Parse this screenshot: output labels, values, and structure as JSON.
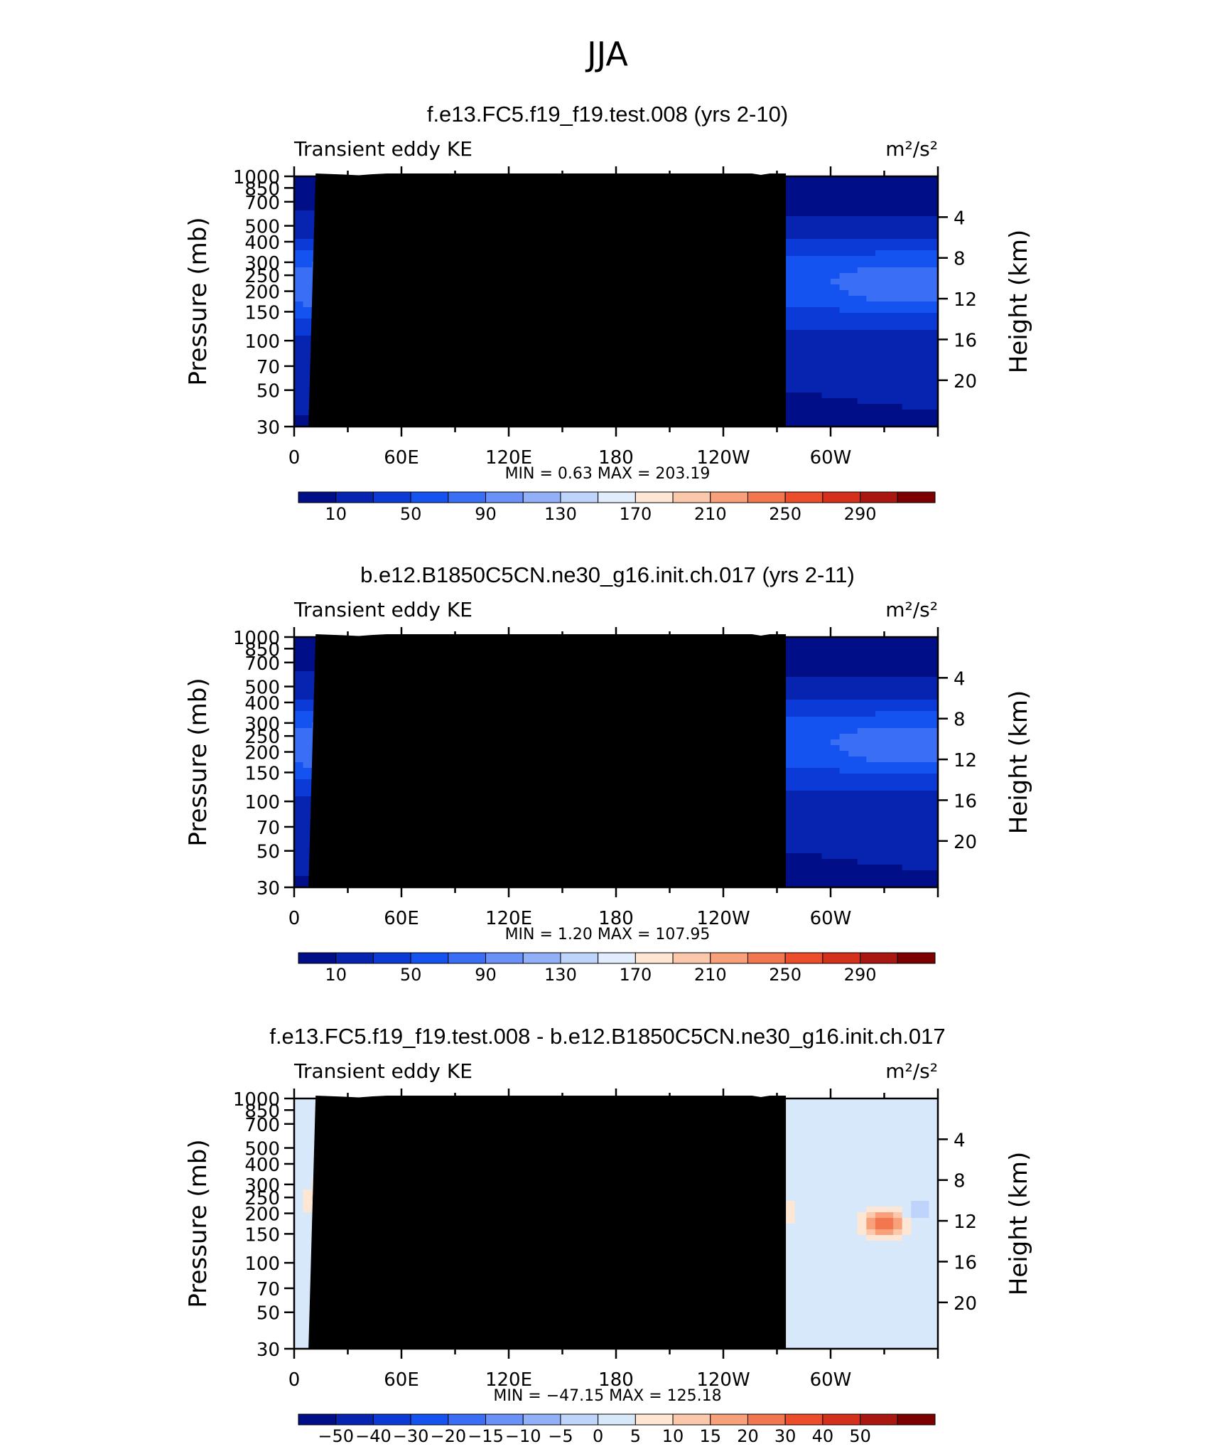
{
  "figure": {
    "season_title": "JJA"
  },
  "colorbars": {
    "model": {
      "colors": [
        "#000f87",
        "#0724b0",
        "#0b3ad6",
        "#1553f0",
        "#3a6ff5",
        "#6991f7",
        "#92b0f8",
        "#bed4fb",
        "#e1edfc",
        "#fde7d4",
        "#fbc8ab",
        "#f8a07a",
        "#f2774f",
        "#ec4e2b",
        "#d5301b",
        "#a91710",
        "#7c0000"
      ],
      "labels": [
        "10",
        "50",
        "90",
        "130",
        "170",
        "210",
        "250",
        "290"
      ]
    },
    "diff": {
      "colors": [
        "#000f87",
        "#0724b0",
        "#0b3ad6",
        "#1553f0",
        "#3a6ff5",
        "#6991f7",
        "#92b0f8",
        "#bed4fb",
        "#d8e8fb",
        "#fde7d4",
        "#fbc8ab",
        "#f8a07a",
        "#f2774f",
        "#ec4e2b",
        "#d5301b",
        "#a91710",
        "#7c0000"
      ],
      "labels": [
        "−50",
        "−40",
        "−30",
        "−20",
        "−15",
        "−10",
        "−5",
        "0",
        "5",
        "10",
        "15",
        "20",
        "30",
        "40",
        "50"
      ]
    }
  },
  "axes": {
    "pressure_ticks": [
      "30",
      "50",
      "70",
      "100",
      "150",
      "200",
      "250",
      "300",
      "400",
      "500",
      "700",
      "850",
      "1000"
    ],
    "height_ticks": [
      "20",
      "16",
      "12",
      "8",
      "4"
    ],
    "lon_ticks": [
      "0",
      "60E",
      "120E",
      "180",
      "120W",
      "60W"
    ],
    "ylabel_left": "Pressure (mb)",
    "ylabel_right": "Height (km)"
  },
  "chart_data": [
    {
      "type": "heatmap",
      "title": "f.e13.FC5.f19_f19.test.008 (yrs 2-10)",
      "left_label": "Transient eddy KE",
      "units": "m²/s²",
      "min_label": "MIN =",
      "min_value": "0.63",
      "max_label": "MAX =",
      "max_value": "203.19",
      "stats": "MIN =      0.63   MAX =  203.19",
      "colorbar": "model",
      "xlim": [
        0,
        360
      ],
      "ylim_mb": [
        1000,
        30
      ],
      "contour_levels": [
        10,
        30,
        50,
        70,
        90,
        110,
        130,
        150,
        170,
        190,
        210,
        230,
        250,
        270,
        290
      ]
    },
    {
      "type": "heatmap",
      "title": "b.e12.B1850C5CN.ne30_g16.init.ch.017 (yrs 2-11)",
      "left_label": "Transient eddy KE",
      "units": "m²/s²",
      "min_label": "MIN =",
      "min_value": "1.20",
      "max_label": "MAX =",
      "max_value": "107.95",
      "stats": "MIN =      1.20   MAX =  107.95",
      "colorbar": "model",
      "xlim": [
        0,
        360
      ],
      "ylim_mb": [
        1000,
        30
      ],
      "contour_levels": [
        10,
        30,
        50,
        70,
        90,
        110,
        130,
        150,
        170,
        190,
        210,
        230,
        250,
        270,
        290
      ]
    },
    {
      "type": "heatmap",
      "title": "f.e13.FC5.f19_f19.test.008 - b.e12.B1850C5CN.ne30_g16.init.ch.017",
      "left_label": "Transient eddy KE",
      "units": "m²/s²",
      "min_label": "MIN =",
      "min_value": "−47.15",
      "max_label": "MAX =",
      "max_value": "125.18",
      "stats": "MIN =  −47.15   MAX =  125.18",
      "colorbar": "diff",
      "xlim": [
        0,
        360
      ],
      "ylim_mb": [
        1000,
        30
      ],
      "contour_levels": [
        -50,
        -40,
        -30,
        -20,
        -15,
        -10,
        -5,
        0,
        5,
        10,
        15,
        20,
        30,
        40,
        50
      ]
    }
  ]
}
